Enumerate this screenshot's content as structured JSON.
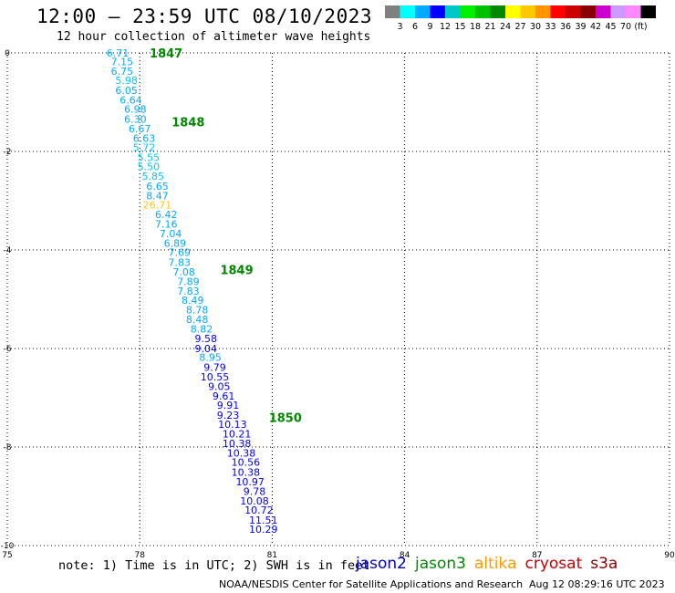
{
  "header": {
    "title": "12:00 – 23:59 UTC 08/10/2023",
    "subtitle": "12 hour collection of altimeter wave heights"
  },
  "legend_scale": {
    "colors": [
      "#808080",
      "#00ffff",
      "#00aaff",
      "#0000ff",
      "#00c8c8",
      "#00ee00",
      "#00c000",
      "#008800",
      "#ffff00",
      "#ffc800",
      "#ff9600",
      "#ff0000",
      "#cc0000",
      "#880000",
      "#cc00cc",
      "#cc99ff",
      "#ff88ff",
      "#000000"
    ],
    "ticks": [
      "3",
      "6",
      "9",
      "12",
      "15",
      "18",
      "21",
      "24",
      "27",
      "30",
      "33",
      "36",
      "39",
      "42",
      "45",
      "70",
      "(ft)"
    ]
  },
  "footer": {
    "note": "note: 1) Time is in UTC; 2) SWH is in feet",
    "credit": "NOAA/NESDIS Center for Satellite Applications and Research",
    "timestamp": "Aug 12 08:29:16 UTC 2023"
  },
  "satellites": [
    {
      "name": "jason2",
      "color": "#0000cc"
    },
    {
      "name": "jason3",
      "color": "#008800"
    },
    {
      "name": "altika",
      "color": "#ff9900"
    },
    {
      "name": "cryosat",
      "color": "#cc0000"
    },
    {
      "name": "s3a",
      "color": "#880000"
    }
  ],
  "chart_data": {
    "type": "scatter",
    "xlim": [
      75,
      90
    ],
    "ylim": [
      -10,
      0
    ],
    "x_ticks": [
      "75",
      "78",
      "81",
      "84",
      "87",
      "90"
    ],
    "y_ticks": [
      "0",
      "-2",
      "-4",
      "-6",
      "-8",
      "-10"
    ],
    "grid": true,
    "time_labels": [
      {
        "text": "1847",
        "x": 78.1,
        "y": 0.0,
        "color": "#008800"
      },
      {
        "text": "1848",
        "x": 78.6,
        "y": -1.4,
        "color": "#008800"
      },
      {
        "text": "1849",
        "x": 79.7,
        "y": -4.4,
        "color": "#008800"
      },
      {
        "text": "1850",
        "x": 80.8,
        "y": -7.4,
        "color": "#008800"
      }
    ],
    "series": [
      {
        "points": [
          {
            "lon": 77.5,
            "lat": 0.0,
            "swh": "6.71",
            "color": "#00aaff"
          },
          {
            "lon": 77.6,
            "lat": -0.18,
            "swh": "7.15",
            "color": "#00aaff"
          },
          {
            "lon": 77.6,
            "lat": -0.37,
            "swh": "6.75",
            "color": "#00aaff"
          },
          {
            "lon": 77.7,
            "lat": -0.56,
            "swh": "5.98",
            "color": "#00c8ff"
          },
          {
            "lon": 77.7,
            "lat": -0.76,
            "swh": "6.05",
            "color": "#00aaff"
          },
          {
            "lon": 77.8,
            "lat": -0.95,
            "swh": "6.64",
            "color": "#00aaff"
          },
          {
            "lon": 77.9,
            "lat": -1.14,
            "swh": "6.98",
            "color": "#00aaff"
          },
          {
            "lon": 77.9,
            "lat": -1.34,
            "swh": "6.30",
            "color": "#00aaff"
          },
          {
            "lon": 78.0,
            "lat": -1.54,
            "swh": "6.67",
            "color": "#00aaff"
          },
          {
            "lon": 78.1,
            "lat": -1.73,
            "swh": "6.63",
            "color": "#00aaff"
          },
          {
            "lon": 78.1,
            "lat": -1.92,
            "swh": "5.72",
            "color": "#00c8ff"
          },
          {
            "lon": 78.2,
            "lat": -2.12,
            "swh": "5.55",
            "color": "#00c8ff"
          },
          {
            "lon": 78.2,
            "lat": -2.31,
            "swh": "5.50",
            "color": "#00c8ff"
          },
          {
            "lon": 78.3,
            "lat": -2.5,
            "swh": "5.85",
            "color": "#00c8ff"
          },
          {
            "lon": 78.4,
            "lat": -2.7,
            "swh": "6.65",
            "color": "#00aaff"
          },
          {
            "lon": 78.4,
            "lat": -2.9,
            "swh": "8.47",
            "color": "#00aaff"
          },
          {
            "lon": 78.4,
            "lat": -3.08,
            "swh": "26.71",
            "color": "#ffc800"
          },
          {
            "lon": 78.6,
            "lat": -3.28,
            "swh": "6.42",
            "color": "#00aaff"
          },
          {
            "lon": 78.6,
            "lat": -3.47,
            "swh": "7.16",
            "color": "#00aaff"
          },
          {
            "lon": 78.7,
            "lat": -3.67,
            "swh": "7.04",
            "color": "#00aaff"
          },
          {
            "lon": 78.8,
            "lat": -3.86,
            "swh": "6.89",
            "color": "#00aaff"
          },
          {
            "lon": 78.9,
            "lat": -4.05,
            "swh": "7.69",
            "color": "#00aaff"
          },
          {
            "lon": 78.9,
            "lat": -4.25,
            "swh": "7.83",
            "color": "#00aaff"
          },
          {
            "lon": 79.0,
            "lat": -4.44,
            "swh": "7.08",
            "color": "#00aaff"
          },
          {
            "lon": 79.1,
            "lat": -4.64,
            "swh": "7.89",
            "color": "#00aaff"
          },
          {
            "lon": 79.1,
            "lat": -4.83,
            "swh": "7.83",
            "color": "#00aaff"
          },
          {
            "lon": 79.2,
            "lat": -5.02,
            "swh": "8.49",
            "color": "#00aaff"
          },
          {
            "lon": 79.3,
            "lat": -5.21,
            "swh": "8.78",
            "color": "#00aaff"
          },
          {
            "lon": 79.3,
            "lat": -5.41,
            "swh": "8.48",
            "color": "#00aaff"
          },
          {
            "lon": 79.4,
            "lat": -5.6,
            "swh": "8.82",
            "color": "#00aaff"
          },
          {
            "lon": 79.5,
            "lat": -5.8,
            "swh": "9.58",
            "color": "#0000ff"
          },
          {
            "lon": 79.5,
            "lat": -6.0,
            "swh": "9.04",
            "color": "#0000ff"
          },
          {
            "lon": 79.6,
            "lat": -6.18,
            "swh": "8.95",
            "color": "#00aaff"
          },
          {
            "lon": 79.7,
            "lat": -6.38,
            "swh": "9.79",
            "color": "#0000ff"
          },
          {
            "lon": 79.7,
            "lat": -6.57,
            "swh": "10.55",
            "color": "#0000ff"
          },
          {
            "lon": 79.8,
            "lat": -6.77,
            "swh": "9.05",
            "color": "#0000ff"
          },
          {
            "lon": 79.9,
            "lat": -6.96,
            "swh": "9.61",
            "color": "#0000ff"
          },
          {
            "lon": 80.0,
            "lat": -7.15,
            "swh": "9.91",
            "color": "#0000ff"
          },
          {
            "lon": 80.0,
            "lat": -7.35,
            "swh": "9.23",
            "color": "#0000ff"
          },
          {
            "lon": 80.1,
            "lat": -7.54,
            "swh": "10.13",
            "color": "#0000ff"
          },
          {
            "lon": 80.2,
            "lat": -7.73,
            "swh": "10.21",
            "color": "#0000ff"
          },
          {
            "lon": 80.2,
            "lat": -7.93,
            "swh": "10.38",
            "color": "#0000ff"
          },
          {
            "lon": 80.3,
            "lat": -8.12,
            "swh": "10.38",
            "color": "#0000ff"
          },
          {
            "lon": 80.4,
            "lat": -8.31,
            "swh": "10.56",
            "color": "#0000ff"
          },
          {
            "lon": 80.4,
            "lat": -8.51,
            "swh": "10.38",
            "color": "#0000ff"
          },
          {
            "lon": 80.5,
            "lat": -8.7,
            "swh": "10.97",
            "color": "#0000ff"
          },
          {
            "lon": 80.6,
            "lat": -8.9,
            "swh": "9.78",
            "color": "#0000ff"
          },
          {
            "lon": 80.6,
            "lat": -9.09,
            "swh": "10.08",
            "color": "#0000ff"
          },
          {
            "lon": 80.7,
            "lat": -9.28,
            "swh": "10.72",
            "color": "#0000ff"
          },
          {
            "lon": 80.8,
            "lat": -9.48,
            "swh": "11.51",
            "color": "#0000ff"
          },
          {
            "lon": 80.8,
            "lat": -9.67,
            "swh": "10.29",
            "color": "#0000ff"
          }
        ]
      }
    ]
  }
}
